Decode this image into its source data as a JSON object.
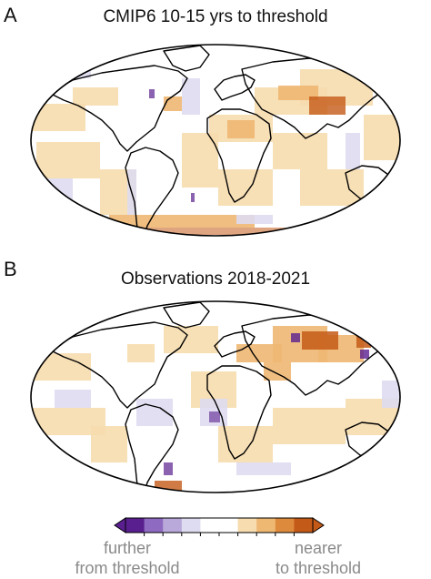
{
  "panel_a": {
    "letter": "A",
    "title": "CMIP6 10-15 yrs to threshold"
  },
  "panel_b": {
    "letter": "B",
    "title": "Observations 2018-2021"
  },
  "legend": {
    "colors": [
      "#5a1f8f",
      "#8e6ac0",
      "#b9a9da",
      "#dedcf0",
      "#ffffff",
      "#ffffff",
      "#f6dcae",
      "#eeb772",
      "#dd8a3c",
      "#c45a18"
    ],
    "left_label_line1": "further",
    "left_label_line2": "from threshold",
    "right_label_line1": "nearer",
    "right_label_line2": "to threshold"
  },
  "colors": {
    "ocean_white": "#ffffff",
    "coast": "#000000",
    "near_light": "#f6dcae",
    "near_mid": "#eeb772",
    "near_dark": "#c45a18",
    "far_light": "#dedcf0",
    "far_dark": "#5a1f8f"
  }
}
